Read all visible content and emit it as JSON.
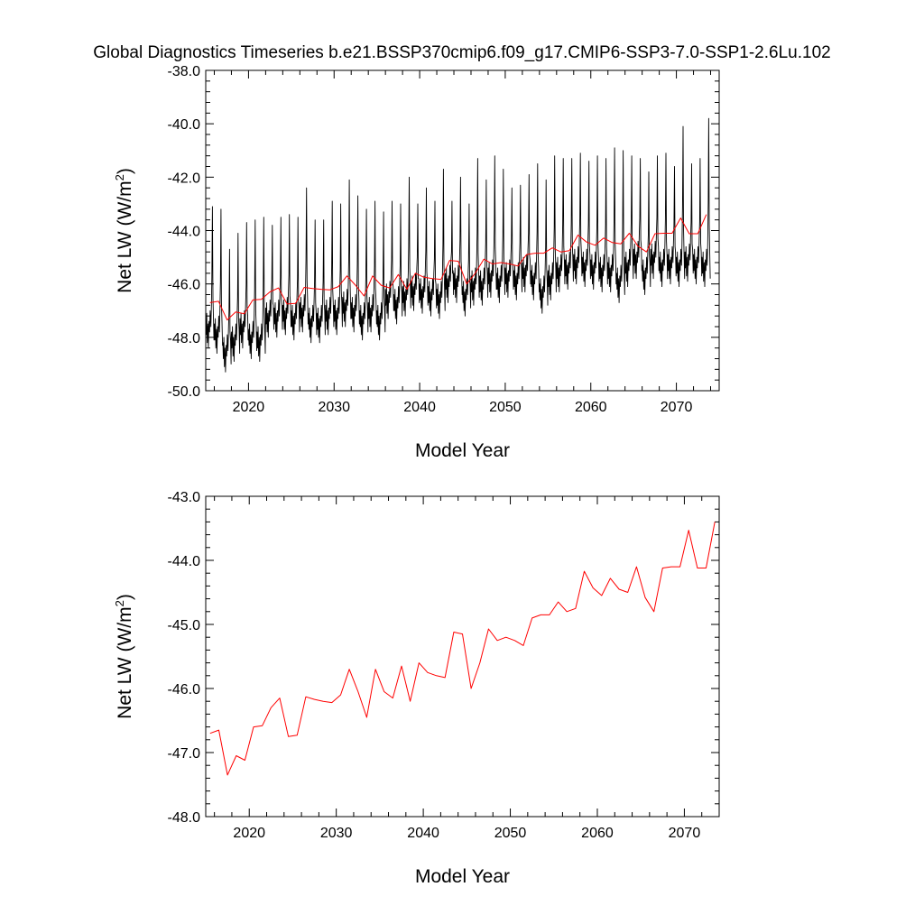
{
  "title": "Global Diagnostics Timeseries b.e21.BSSP370cmip6.f09_g17.CMIP6-SSP3-7.0-SSP1-2.6Lu.102",
  "colors": {
    "monthly": "#000000",
    "annual": "#ff0000",
    "frame": "#000000"
  },
  "chart_data": [
    {
      "type": "line",
      "xlabel": "Model Year",
      "ylabel_main": "Net LW (W/m",
      "ylabel_sup": "2",
      "ylabel_close": ")",
      "xlim": [
        2015,
        2075
      ],
      "ylim": [
        -50,
        -38
      ],
      "xticks": [
        2020,
        2030,
        2040,
        2050,
        2060,
        2070
      ],
      "xtick_labels": [
        "2020",
        "2030",
        "2040",
        "2050",
        "2060",
        "2070"
      ],
      "yticks": [
        -50,
        -48,
        -46,
        -44,
        -42,
        -40,
        -38
      ],
      "ytick_labels": [
        "-50.0",
        "-48.0",
        "-46.0",
        "-44.0",
        "-42.0",
        "-40.0",
        "-38.0"
      ],
      "grid": false,
      "series": [
        {
          "kind": "monthly",
          "color": "#000000",
          "start_year": 2015,
          "peaks": [
            -43.1,
            -43.2,
            -44.7,
            -44.1,
            -43.7,
            -43.6,
            -43.5,
            -43.8,
            -43.5,
            -43.4,
            -43.5,
            -42.4,
            -43.6,
            -43.6,
            -42.9,
            -43.0,
            -42.1,
            -42.7,
            -43.2,
            -42.9,
            -43.3,
            -42.9,
            -43.0,
            -42.0,
            -43.0,
            -42.4,
            -42.9,
            -41.7,
            -42.9,
            -42.0,
            -43.0,
            -41.3,
            -42.1,
            -41.2,
            -41.7,
            -42.4,
            -42.3,
            -41.9,
            -41.5,
            -42.1,
            -41.2,
            -41.3,
            -41.3,
            -41.1,
            -41.4,
            -41.2,
            -41.3,
            -40.9,
            -41.0,
            -41.2,
            -41.3,
            -41.8,
            -41.2,
            -41.1,
            -41.6,
            -40.1,
            -41.5,
            -41.3,
            -39.8
          ],
          "troughs": [
            -48.4,
            -48.6,
            -49.3,
            -48.9,
            -48.4,
            -48.8,
            -48.9,
            -48.0,
            -48.0,
            -47.9,
            -48.1,
            -47.8,
            -48.2,
            -48.2,
            -47.9,
            -47.9,
            -47.6,
            -47.8,
            -48.1,
            -47.8,
            -48.1,
            -47.3,
            -47.5,
            -47.2,
            -47.0,
            -47.1,
            -47.2,
            -47.3,
            -46.7,
            -46.7,
            -47.2,
            -46.8,
            -46.8,
            -46.5,
            -46.7,
            -46.5,
            -46.6,
            -46.3,
            -46.6,
            -47.1,
            -46.6,
            -46.3,
            -46.2,
            -46.0,
            -46.1,
            -46.2,
            -46.3,
            -46.3,
            -46.7,
            -46.1,
            -45.8,
            -46.4,
            -45.8,
            -46.1,
            -46.0,
            -46.1,
            -45.9,
            -46.0,
            -46.1
          ]
        },
        {
          "kind": "annual",
          "color": "#ff0000",
          "x": [
            2015.5,
            2016.5,
            2017.5,
            2018.5,
            2019.5,
            2020.5,
            2021.5,
            2022.5,
            2023.5,
            2024.5,
            2025.5,
            2026.5,
            2027.5,
            2028.5,
            2029.5,
            2030.5,
            2031.5,
            2032.5,
            2033.5,
            2034.5,
            2035.5,
            2036.5,
            2037.5,
            2038.5,
            2039.5,
            2040.5,
            2041.5,
            2042.5,
            2043.5,
            2044.5,
            2045.5,
            2046.5,
            2047.5,
            2048.5,
            2049.5,
            2050.5,
            2051.5,
            2052.5,
            2053.5,
            2054.5,
            2055.5,
            2056.5,
            2057.5,
            2058.5,
            2059.5,
            2060.5,
            2061.5,
            2062.5,
            2063.5,
            2064.5,
            2065.5,
            2066.5,
            2067.5,
            2068.5,
            2069.5,
            2070.5,
            2071.5,
            2072.5,
            2073.5
          ],
          "y": [
            -46.7,
            -46.65,
            -47.35,
            -47.05,
            -47.12,
            -46.6,
            -46.58,
            -46.3,
            -46.15,
            -46.75,
            -46.73,
            -46.13,
            -46.17,
            -46.2,
            -46.22,
            -46.1,
            -45.7,
            -46.05,
            -46.45,
            -45.7,
            -46.05,
            -46.15,
            -45.65,
            -46.2,
            -45.6,
            -45.75,
            -45.8,
            -45.83,
            -45.12,
            -45.15,
            -46.0,
            -45.6,
            -45.07,
            -45.25,
            -45.2,
            -45.25,
            -45.33,
            -44.9,
            -44.85,
            -44.85,
            -44.65,
            -44.8,
            -44.75,
            -44.17,
            -44.43,
            -44.55,
            -44.28,
            -44.45,
            -44.5,
            -44.1,
            -44.58,
            -44.8,
            -44.12,
            -44.1,
            -44.1,
            -43.53,
            -44.12,
            -44.12,
            -43.4
          ]
        }
      ]
    },
    {
      "type": "line",
      "xlabel": "Model Year",
      "ylabel_main": "Net LW (W/m",
      "ylabel_sup": "2",
      "ylabel_close": ")",
      "xlim": [
        2015,
        2074
      ],
      "ylim": [
        -48,
        -43
      ],
      "xticks": [
        2020,
        2030,
        2040,
        2050,
        2060,
        2070
      ],
      "xtick_labels": [
        "2020",
        "2030",
        "2040",
        "2050",
        "2060",
        "2070"
      ],
      "yticks": [
        -48,
        -47,
        -46,
        -45,
        -44,
        -43
      ],
      "ytick_labels": [
        "-48.0",
        "-47.0",
        "-46.0",
        "-45.0",
        "-44.0",
        "-43.0"
      ],
      "grid": false,
      "series": [
        {
          "kind": "annual",
          "color": "#ff0000",
          "x": [
            2015.5,
            2016.5,
            2017.5,
            2018.5,
            2019.5,
            2020.5,
            2021.5,
            2022.5,
            2023.5,
            2024.5,
            2025.5,
            2026.5,
            2027.5,
            2028.5,
            2029.5,
            2030.5,
            2031.5,
            2032.5,
            2033.5,
            2034.5,
            2035.5,
            2036.5,
            2037.5,
            2038.5,
            2039.5,
            2040.5,
            2041.5,
            2042.5,
            2043.5,
            2044.5,
            2045.5,
            2046.5,
            2047.5,
            2048.5,
            2049.5,
            2050.5,
            2051.5,
            2052.5,
            2053.5,
            2054.5,
            2055.5,
            2056.5,
            2057.5,
            2058.5,
            2059.5,
            2060.5,
            2061.5,
            2062.5,
            2063.5,
            2064.5,
            2065.5,
            2066.5,
            2067.5,
            2068.5,
            2069.5,
            2070.5,
            2071.5,
            2072.5,
            2073.5
          ],
          "y": [
            -46.7,
            -46.65,
            -47.35,
            -47.05,
            -47.12,
            -46.6,
            -46.58,
            -46.3,
            -46.15,
            -46.75,
            -46.73,
            -46.13,
            -46.17,
            -46.2,
            -46.22,
            -46.1,
            -45.7,
            -46.05,
            -46.45,
            -45.7,
            -46.05,
            -46.15,
            -45.65,
            -46.2,
            -45.6,
            -45.75,
            -45.8,
            -45.83,
            -45.12,
            -45.15,
            -46.0,
            -45.6,
            -45.07,
            -45.25,
            -45.2,
            -45.25,
            -45.33,
            -44.9,
            -44.85,
            -44.85,
            -44.65,
            -44.8,
            -44.75,
            -44.17,
            -44.43,
            -44.55,
            -44.28,
            -44.45,
            -44.5,
            -44.1,
            -44.58,
            -44.8,
            -44.12,
            -44.1,
            -44.1,
            -43.53,
            -44.12,
            -44.12,
            -43.4
          ]
        }
      ]
    }
  ]
}
